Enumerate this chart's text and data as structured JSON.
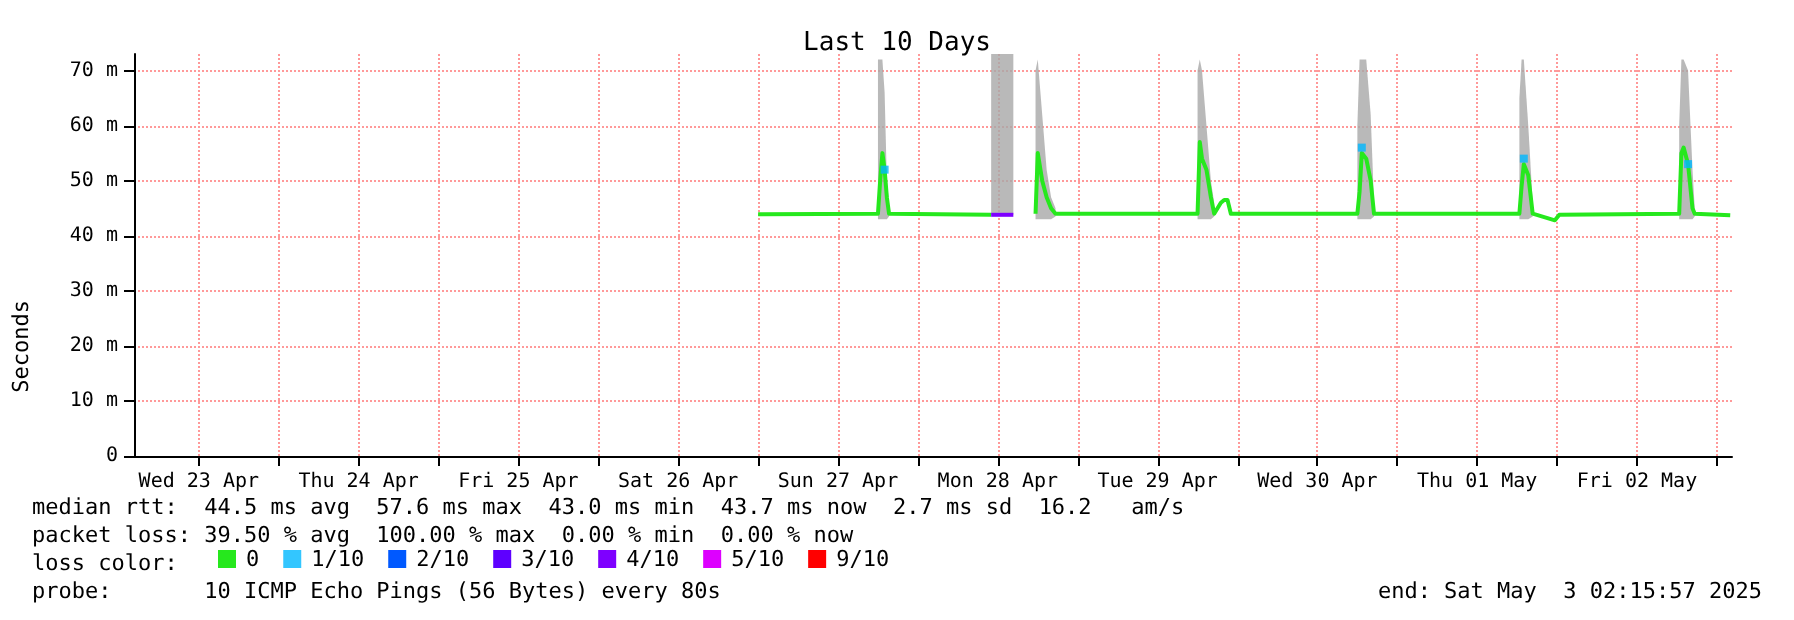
{
  "chart_data": {
    "type": "line",
    "title": "Last 10 Days",
    "ylabel": "Seconds",
    "legend_title": "loss color:",
    "legend": "bottom",
    "grid": true,
    "xlim": [
      "2025-04-23T02:16",
      "2025-05-03T02:16"
    ],
    "xticks": [
      {
        "value": "2025-04-23T12:00",
        "label": "Wed 23 Apr"
      },
      {
        "value": "2025-04-24T00:00",
        "label": null
      },
      {
        "value": "2025-04-24T12:00",
        "label": "Thu 24 Apr"
      },
      {
        "value": "2025-04-25T00:00",
        "label": null
      },
      {
        "value": "2025-04-25T12:00",
        "label": "Fri 25 Apr"
      },
      {
        "value": "2025-04-26T00:00",
        "label": null
      },
      {
        "value": "2025-04-26T12:00",
        "label": "Sat 26 Apr"
      },
      {
        "value": "2025-04-27T00:00",
        "label": null
      },
      {
        "value": "2025-04-27T12:00",
        "label": "Sun 27 Apr"
      },
      {
        "value": "2025-04-28T00:00",
        "label": null
      },
      {
        "value": "2025-04-28T12:00",
        "label": "Mon 28 Apr"
      },
      {
        "value": "2025-04-29T00:00",
        "label": null
      },
      {
        "value": "2025-04-29T12:00",
        "label": "Tue 29 Apr"
      },
      {
        "value": "2025-04-30T00:00",
        "label": null
      },
      {
        "value": "2025-04-30T12:00",
        "label": "Wed 30 Apr"
      },
      {
        "value": "2025-05-01T00:00",
        "label": null
      },
      {
        "value": "2025-05-01T12:00",
        "label": "Thu 01 May"
      },
      {
        "value": "2025-05-02T00:00",
        "label": null
      },
      {
        "value": "2025-05-02T12:00",
        "label": "Fri 02 May"
      },
      {
        "value": "2025-05-03T00:00",
        "label": null
      }
    ],
    "ylim": [
      0,
      73
    ],
    "yticks": [
      0,
      {
        "value": 10,
        "label": "10 m"
      },
      {
        "value": 20,
        "label": "20 m"
      },
      {
        "value": 30,
        "label": "30 m"
      },
      {
        "value": 40,
        "label": "40 m"
      },
      {
        "value": 50,
        "label": "50 m"
      },
      {
        "value": 60,
        "label": "60 m"
      },
      {
        "value": 70,
        "label": "70 m"
      }
    ],
    "series": [
      {
        "name": "0",
        "color": "#26e81d",
        "x": [
          "2025-04-27T00:00",
          "2025-04-27T18:00",
          "2025-04-27T18:20",
          "2025-04-27T18:40",
          "2025-04-27T19:00",
          "2025-04-27T19:20",
          "2025-04-27T19:40",
          "2025-04-28T11:00",
          "2025-04-28T14:20",
          "2025-04-28T17:40",
          "2025-04-28T18:00",
          "2025-04-28T18:40",
          "2025-04-28T19:20",
          "2025-04-28T20:00",
          "2025-04-28T20:40",
          "2025-04-29T12:00",
          "2025-04-29T18:00",
          "2025-04-29T18:20",
          "2025-04-29T18:40",
          "2025-04-29T19:20",
          "2025-04-29T20:00",
          "2025-04-29T20:30",
          "2025-04-29T21:30",
          "2025-04-29T22:00",
          "2025-04-29T22:30",
          "2025-04-29T23:00",
          "2025-04-30T18:00",
          "2025-04-30T18:20",
          "2025-04-30T18:40",
          "2025-04-30T19:20",
          "2025-04-30T20:00",
          "2025-04-30T20:30",
          "2025-05-01T06:00",
          "2025-05-01T18:20",
          "2025-05-01T18:40",
          "2025-05-01T19:00",
          "2025-05-01T19:40",
          "2025-05-01T20:20",
          "2025-05-01T23:40",
          "2025-05-02T00:20",
          "2025-05-02T18:20",
          "2025-05-02T18:40",
          "2025-05-02T19:00",
          "2025-05-02T19:40",
          "2025-05-02T20:20",
          "2025-05-02T20:40",
          "2025-05-03T02:00"
        ],
        "values": [
          43.9,
          44,
          50,
          55,
          52,
          47,
          44,
          43.8,
          null,
          44,
          55,
          50,
          47,
          45,
          44,
          44,
          44,
          57,
          54,
          52,
          47,
          44,
          46,
          46.5,
          46.5,
          44,
          44,
          48,
          55,
          54,
          50,
          44,
          44,
          44,
          49,
          53,
          51,
          44,
          42.8,
          43.8,
          44,
          55,
          56,
          53,
          45,
          44,
          43.7
        ],
        "lower": [
          null,
          43,
          43,
          43,
          43,
          43,
          43.5,
          null,
          null,
          43,
          43,
          43,
          43,
          43,
          43.5,
          null,
          43,
          43,
          43,
          43,
          43,
          43.5,
          null,
          null,
          null,
          null,
          43,
          43,
          43,
          43,
          43,
          43.5,
          null,
          43,
          43,
          43,
          43,
          43.5,
          null,
          null,
          43,
          43,
          43,
          43,
          43,
          43.5,
          null
        ],
        "upper": [
          null,
          72,
          72,
          72,
          66,
          50,
          46,
          null,
          null,
          70,
          72,
          62,
          52,
          47,
          45,
          null,
          70,
          72,
          70,
          60,
          50,
          46,
          null,
          null,
          null,
          null,
          60,
          72,
          72,
          72,
          62,
          46,
          null,
          65,
          72,
          72,
          60,
          46,
          null,
          null,
          60,
          72,
          72,
          70,
          52,
          45,
          null
        ]
      },
      {
        "name": "1/10",
        "type": "scatter",
        "color": "#00b8ff",
        "marker": "square",
        "x": [
          "2025-04-27T19:00",
          "2025-04-30T18:40",
          "2025-05-01T19:00",
          "2025-05-02T19:40"
        ],
        "values": [
          52,
          56,
          54,
          53
        ]
      },
      {
        "name": "2/10",
        "color": "#0059ff"
      },
      {
        "name": "3/10",
        "color": "#5e00ff"
      },
      {
        "name": "4/10",
        "color": "#7e00ff",
        "x": [
          "2025-04-28T11:00",
          "2025-04-28T14:20"
        ],
        "values": [
          43.8,
          43.8
        ],
        "lower": [
          43.8,
          43.8
        ],
        "upper": [
          73,
          73
        ]
      },
      {
        "name": "5/10",
        "color": "#dd00ff"
      },
      {
        "name": "9/10",
        "color": "#ff0000"
      }
    ],
    "annotations": [
      "median rtt:  44.5 ms avg  57.6 ms max  43.0 ms min  43.7 ms now  2.7 ms sd  16.2   am/s",
      "packet loss: 39.50 % avg  100.00 % max  0.00 % min  0.00 % now",
      "probe:       10 ICMP Echo Pings (56 Bytes) every 80s",
      "end: Sat May  3 02:15:57 2025"
    ]
  }
}
